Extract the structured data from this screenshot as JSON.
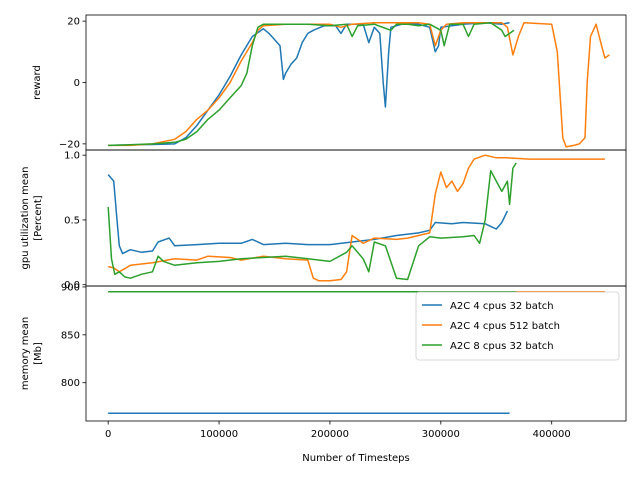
{
  "chart_data": [
    {
      "type": "line",
      "ylabel": "reward",
      "xlim": [
        -20000,
        467000
      ],
      "ylim": [
        -22,
        22
      ],
      "yticks": [
        20,
        0,
        -20
      ],
      "ytick_labels": [
        "20",
        "0",
        "−20"
      ],
      "series": [
        {
          "name": "A2C 4 cpus 32 batch",
          "color": "#1f77b4",
          "points": [
            [
              0,
              -20.5
            ],
            [
              20000,
              -20.3
            ],
            [
              40000,
              -20.2
            ],
            [
              60000,
              -20
            ],
            [
              70000,
              -18
            ],
            [
              80000,
              -14
            ],
            [
              90000,
              -9
            ],
            [
              100000,
              -4
            ],
            [
              110000,
              2
            ],
            [
              120000,
              9
            ],
            [
              130000,
              15
            ],
            [
              140000,
              17.5
            ],
            [
              145000,
              16
            ],
            [
              150000,
              14
            ],
            [
              155000,
              12
            ],
            [
              158000,
              1
            ],
            [
              160000,
              3
            ],
            [
              165000,
              6
            ],
            [
              170000,
              8
            ],
            [
              175000,
              13
            ],
            [
              180000,
              16
            ],
            [
              185000,
              17
            ],
            [
              195000,
              18.5
            ],
            [
              205000,
              18.5
            ],
            [
              210000,
              16
            ],
            [
              215000,
              19
            ],
            [
              230000,
              19
            ],
            [
              235000,
              13
            ],
            [
              240000,
              18
            ],
            [
              245000,
              16
            ],
            [
              248000,
              0
            ],
            [
              250000,
              -8
            ],
            [
              253000,
              10
            ],
            [
              255000,
              18
            ],
            [
              265000,
              19
            ],
            [
              280000,
              19
            ],
            [
              290000,
              18
            ],
            [
              295000,
              10
            ],
            [
              298000,
              12
            ],
            [
              300000,
              18
            ],
            [
              320000,
              19
            ],
            [
              340000,
              19.5
            ],
            [
              355000,
              19
            ],
            [
              362000,
              19.5
            ]
          ]
        },
        {
          "name": "A2C 4 cpus 512 batch",
          "color": "#ff7f0e",
          "points": [
            [
              0,
              -20.5
            ],
            [
              20000,
              -20.5
            ],
            [
              40000,
              -20
            ],
            [
              60000,
              -18.5
            ],
            [
              70000,
              -16
            ],
            [
              80000,
              -12
            ],
            [
              90000,
              -9
            ],
            [
              100000,
              -5
            ],
            [
              110000,
              0
            ],
            [
              120000,
              7
            ],
            [
              130000,
              13
            ],
            [
              135000,
              17
            ],
            [
              140000,
              18.5
            ],
            [
              160000,
              19
            ],
            [
              180000,
              19
            ],
            [
              200000,
              19
            ],
            [
              210000,
              18
            ],
            [
              220000,
              19
            ],
            [
              240000,
              19.5
            ],
            [
              260000,
              19.5
            ],
            [
              280000,
              19.5
            ],
            [
              290000,
              19
            ],
            [
              295000,
              12
            ],
            [
              300000,
              17
            ],
            [
              305000,
              19
            ],
            [
              320000,
              19.5
            ],
            [
              340000,
              19.5
            ],
            [
              355000,
              19.5
            ],
            [
              360000,
              18
            ],
            [
              365000,
              9
            ],
            [
              370000,
              15
            ],
            [
              375000,
              19.5
            ],
            [
              400000,
              19
            ],
            [
              405000,
              10
            ],
            [
              410000,
              -18
            ],
            [
              413000,
              -21
            ],
            [
              420000,
              -20.5
            ],
            [
              425000,
              -20
            ],
            [
              430000,
              -18
            ],
            [
              432000,
              0
            ],
            [
              435000,
              15
            ],
            [
              440000,
              19
            ],
            [
              445000,
              12
            ],
            [
              448000,
              8
            ],
            [
              452000,
              9
            ]
          ]
        },
        {
          "name": "A2C 8 cpus 32 batch",
          "color": "#2ca02c",
          "points": [
            [
              0,
              -20.5
            ],
            [
              20000,
              -20.3
            ],
            [
              40000,
              -20
            ],
            [
              60000,
              -19.5
            ],
            [
              70000,
              -18.5
            ],
            [
              80000,
              -16
            ],
            [
              90000,
              -12
            ],
            [
              100000,
              -9
            ],
            [
              110000,
              -5
            ],
            [
              120000,
              -1
            ],
            [
              125000,
              3
            ],
            [
              130000,
              12
            ],
            [
              135000,
              18
            ],
            [
              140000,
              19
            ],
            [
              160000,
              19
            ],
            [
              180000,
              19
            ],
            [
              200000,
              18.5
            ],
            [
              215000,
              19
            ],
            [
              220000,
              15
            ],
            [
              225000,
              18.5
            ],
            [
              240000,
              19
            ],
            [
              255000,
              17
            ],
            [
              260000,
              19
            ],
            [
              270000,
              19
            ],
            [
              280000,
              18.5
            ],
            [
              290000,
              19
            ],
            [
              300000,
              17
            ],
            [
              303000,
              12
            ],
            [
              308000,
              19
            ],
            [
              320000,
              19
            ],
            [
              325000,
              15
            ],
            [
              330000,
              19
            ],
            [
              345000,
              19.5
            ],
            [
              355000,
              17
            ],
            [
              358000,
              15
            ],
            [
              362000,
              16
            ],
            [
              366000,
              17
            ]
          ]
        }
      ]
    },
    {
      "type": "line",
      "ylabel": "gpu utilization mean",
      "ylabel2": "[Percent]",
      "xlim": [
        -20000,
        467000
      ],
      "ylim": [
        -0.01,
        1.04
      ],
      "yticks": [
        1.0,
        0.5,
        0.0
      ],
      "ytick_labels": [
        "1.0",
        "0.5",
        "0.0"
      ],
      "series": [
        {
          "name": "A2C 4 cpus 32 batch",
          "color": "#1f77b4",
          "points": [
            [
              0,
              0.85
            ],
            [
              5000,
              0.8
            ],
            [
              8000,
              0.5
            ],
            [
              10000,
              0.3
            ],
            [
              13000,
              0.24
            ],
            [
              20000,
              0.27
            ],
            [
              30000,
              0.25
            ],
            [
              40000,
              0.26
            ],
            [
              45000,
              0.33
            ],
            [
              55000,
              0.36
            ],
            [
              60000,
              0.3
            ],
            [
              80000,
              0.31
            ],
            [
              100000,
              0.32
            ],
            [
              120000,
              0.32
            ],
            [
              130000,
              0.35
            ],
            [
              140000,
              0.31
            ],
            [
              160000,
              0.32
            ],
            [
              180000,
              0.31
            ],
            [
              200000,
              0.31
            ],
            [
              220000,
              0.33
            ],
            [
              240000,
              0.35
            ],
            [
              260000,
              0.38
            ],
            [
              280000,
              0.4
            ],
            [
              290000,
              0.42
            ],
            [
              295000,
              0.48
            ],
            [
              310000,
              0.47
            ],
            [
              320000,
              0.48
            ],
            [
              340000,
              0.47
            ],
            [
              345000,
              0.45
            ],
            [
              350000,
              0.43
            ],
            [
              355000,
              0.48
            ],
            [
              360000,
              0.57
            ]
          ]
        },
        {
          "name": "A2C 4 cpus 512 batch",
          "color": "#ff7f0e",
          "points": [
            [
              0,
              0.14
            ],
            [
              5000,
              0.13
            ],
            [
              10000,
              0.1
            ],
            [
              20000,
              0.15
            ],
            [
              30000,
              0.16
            ],
            [
              40000,
              0.17
            ],
            [
              60000,
              0.2
            ],
            [
              80000,
              0.19
            ],
            [
              90000,
              0.22
            ],
            [
              110000,
              0.21
            ],
            [
              120000,
              0.19
            ],
            [
              140000,
              0.22
            ],
            [
              160000,
              0.2
            ],
            [
              180000,
              0.19
            ],
            [
              185000,
              0.05
            ],
            [
              190000,
              0.03
            ],
            [
              200000,
              0.03
            ],
            [
              210000,
              0.04
            ],
            [
              215000,
              0.1
            ],
            [
              220000,
              0.38
            ],
            [
              230000,
              0.32
            ],
            [
              240000,
              0.36
            ],
            [
              260000,
              0.35
            ],
            [
              270000,
              0.36
            ],
            [
              280000,
              0.38
            ],
            [
              290000,
              0.4
            ],
            [
              295000,
              0.7
            ],
            [
              300000,
              0.87
            ],
            [
              305000,
              0.75
            ],
            [
              310000,
              0.8
            ],
            [
              315000,
              0.72
            ],
            [
              320000,
              0.78
            ],
            [
              325000,
              0.9
            ],
            [
              330000,
              0.97
            ],
            [
              340000,
              1.0
            ],
            [
              350000,
              0.98
            ],
            [
              360000,
              0.98
            ],
            [
              380000,
              0.97
            ],
            [
              400000,
              0.97
            ],
            [
              420000,
              0.97
            ],
            [
              448000,
              0.97
            ]
          ]
        },
        {
          "name": "A2C 8 cpus 32 batch",
          "color": "#2ca02c",
          "points": [
            [
              0,
              0.6
            ],
            [
              3000,
              0.2
            ],
            [
              6000,
              0.08
            ],
            [
              10000,
              0.1
            ],
            [
              15000,
              0.06
            ],
            [
              20000,
              0.05
            ],
            [
              30000,
              0.08
            ],
            [
              40000,
              0.1
            ],
            [
              45000,
              0.22
            ],
            [
              50000,
              0.18
            ],
            [
              60000,
              0.15
            ],
            [
              80000,
              0.17
            ],
            [
              100000,
              0.18
            ],
            [
              120000,
              0.2
            ],
            [
              140000,
              0.21
            ],
            [
              160000,
              0.22
            ],
            [
              180000,
              0.2
            ],
            [
              200000,
              0.18
            ],
            [
              215000,
              0.25
            ],
            [
              220000,
              0.3
            ],
            [
              230000,
              0.2
            ],
            [
              235000,
              0.1
            ],
            [
              240000,
              0.33
            ],
            [
              250000,
              0.3
            ],
            [
              260000,
              0.05
            ],
            [
              270000,
              0.04
            ],
            [
              280000,
              0.3
            ],
            [
              290000,
              0.37
            ],
            [
              300000,
              0.36
            ],
            [
              320000,
              0.37
            ],
            [
              330000,
              0.38
            ],
            [
              335000,
              0.32
            ],
            [
              340000,
              0.5
            ],
            [
              345000,
              0.88
            ],
            [
              350000,
              0.8
            ],
            [
              355000,
              0.72
            ],
            [
              360000,
              0.8
            ],
            [
              362000,
              0.62
            ],
            [
              365000,
              0.9
            ],
            [
              368000,
              0.94
            ]
          ]
        }
      ]
    },
    {
      "type": "line",
      "ylabel": "memory mean",
      "ylabel2": "[Mb]",
      "xlabel": "Number of Timesteps",
      "xlim": [
        -20000,
        467000
      ],
      "ylim": [
        760,
        901
      ],
      "yticks": [
        900,
        850,
        800
      ],
      "ytick_labels": [
        "900",
        "850",
        "800"
      ],
      "xticks": [
        0,
        100000,
        200000,
        300000,
        400000
      ],
      "xtick_labels": [
        "0",
        "100000",
        "200000",
        "300000",
        "400000"
      ],
      "legend_position": "top-right",
      "series": [
        {
          "name": "A2C 4 cpus 32 batch",
          "color": "#1f77b4",
          "points": [
            [
              0,
              768
            ],
            [
              362000,
              768
            ]
          ]
        },
        {
          "name": "A2C 4 cpus 512 batch",
          "color": "#ff7f0e",
          "points": [
            [
              0,
              895
            ],
            [
              448000,
              895
            ]
          ]
        },
        {
          "name": "A2C 8 cpus 32 batch",
          "color": "#2ca02c",
          "points": [
            [
              0,
              895
            ],
            [
              368000,
              895
            ]
          ]
        }
      ]
    }
  ]
}
